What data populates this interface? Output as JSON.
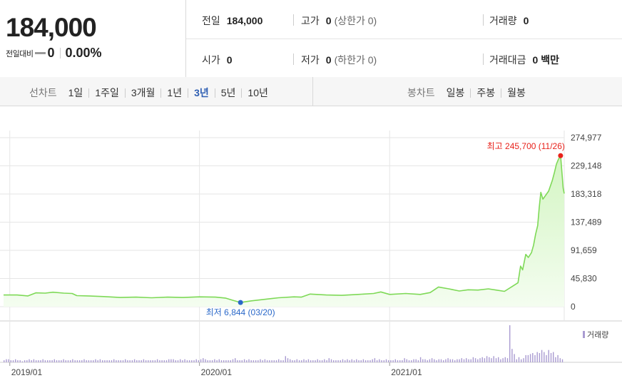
{
  "quote": {
    "price": "184,000",
    "change_label": "전일대비",
    "change_value": "0",
    "change_pct": "0.00%",
    "prev_close_label": "전일",
    "prev_close": "184,000",
    "open_label": "시가",
    "open": "0",
    "high_label": "고가",
    "high": "0",
    "high_limit": "(상한가 0)",
    "low_label": "저가",
    "low": "0",
    "low_limit": "(하한가 0)",
    "volume_label": "거래량",
    "volume": "0",
    "amount_label": "거래대금",
    "amount": "0 백만"
  },
  "toolbar": {
    "line_label": "선차트",
    "periods": [
      "1일",
      "1주일",
      "3개월",
      "1년",
      "3년",
      "5년",
      "10년"
    ],
    "selected_period": "3년",
    "candle_label": "봉차트",
    "candles": [
      "일봉",
      "주봉",
      "월봉"
    ]
  },
  "colors": {
    "line": "#7ed957",
    "fill_top": "#d3f5c2",
    "fill_bottom": "#f4fdf0",
    "volume": "#a99bd1",
    "high_marker": "#e8221b",
    "low_marker": "#2a68c9",
    "grid": "#e6e6e6",
    "selected": "#2f5fb3"
  },
  "chart_data": {
    "type": "area",
    "ylim": [
      0,
      274977
    ],
    "y_ticks": [
      "274,977",
      "229,148",
      "183,318",
      "137,489",
      "91,659",
      "45,830",
      "0"
    ],
    "y_tick_values": [
      274977,
      229148,
      183318,
      137489,
      91659,
      45830,
      0
    ],
    "x_ticks": [
      "2019/01",
      "2020/01",
      "2021/01"
    ],
    "x_tick_dates": [
      "2019-01-01",
      "2020-01-01",
      "2021-01-01"
    ],
    "x_range": [
      "2018-12-20",
      "2021-12-03"
    ],
    "grid": true,
    "high_annotation": "최고 245,700 (11/26)",
    "low_annotation": "최저 6,844 (03/20)",
    "high_point": {
      "x": "2021-11-26",
      "y": 245700
    },
    "low_point": {
      "x": "2020-03-20",
      "y": 6844
    },
    "series": [
      {
        "values": [
          {
            "x": "2018-12-20",
            "y": 19000
          },
          {
            "x": "2019-01-15",
            "y": 19000
          },
          {
            "x": "2019-02-05",
            "y": 17500
          },
          {
            "x": "2019-02-20",
            "y": 22500
          },
          {
            "x": "2019-03-10",
            "y": 22000
          },
          {
            "x": "2019-03-25",
            "y": 23500
          },
          {
            "x": "2019-04-15",
            "y": 22000
          },
          {
            "x": "2019-05-01",
            "y": 21500
          },
          {
            "x": "2019-05-10",
            "y": 18000
          },
          {
            "x": "2019-06-01",
            "y": 17500
          },
          {
            "x": "2019-07-01",
            "y": 16500
          },
          {
            "x": "2019-08-01",
            "y": 15000
          },
          {
            "x": "2019-09-01",
            "y": 15500
          },
          {
            "x": "2019-10-01",
            "y": 14500
          },
          {
            "x": "2019-11-01",
            "y": 15500
          },
          {
            "x": "2019-12-01",
            "y": 15000
          },
          {
            "x": "2020-01-01",
            "y": 16000
          },
          {
            "x": "2020-02-01",
            "y": 15500
          },
          {
            "x": "2020-02-20",
            "y": 14000
          },
          {
            "x": "2020-03-05",
            "y": 10500
          },
          {
            "x": "2020-03-20",
            "y": 6844
          },
          {
            "x": "2020-04-10",
            "y": 9500
          },
          {
            "x": "2020-05-01",
            "y": 11500
          },
          {
            "x": "2020-06-01",
            "y": 14500
          },
          {
            "x": "2020-07-01",
            "y": 16000
          },
          {
            "x": "2020-07-15",
            "y": 15500
          },
          {
            "x": "2020-08-01",
            "y": 20500
          },
          {
            "x": "2020-09-01",
            "y": 19000
          },
          {
            "x": "2020-10-01",
            "y": 18500
          },
          {
            "x": "2020-11-01",
            "y": 20000
          },
          {
            "x": "2020-12-01",
            "y": 21500
          },
          {
            "x": "2020-12-15",
            "y": 24000
          },
          {
            "x": "2021-01-01",
            "y": 20000
          },
          {
            "x": "2021-02-01",
            "y": 21500
          },
          {
            "x": "2021-03-01",
            "y": 20000
          },
          {
            "x": "2021-03-20",
            "y": 23000
          },
          {
            "x": "2021-04-05",
            "y": 32000
          },
          {
            "x": "2021-04-25",
            "y": 29000
          },
          {
            "x": "2021-05-15",
            "y": 25500
          },
          {
            "x": "2021-06-01",
            "y": 27500
          },
          {
            "x": "2021-06-20",
            "y": 27000
          },
          {
            "x": "2021-07-10",
            "y": 29000
          },
          {
            "x": "2021-07-25",
            "y": 27000
          },
          {
            "x": "2021-08-10",
            "y": 25000
          },
          {
            "x": "2021-08-25",
            "y": 33000
          },
          {
            "x": "2021-09-05",
            "y": 39000
          },
          {
            "x": "2021-09-10",
            "y": 66000
          },
          {
            "x": "2021-09-14",
            "y": 60000
          },
          {
            "x": "2021-09-20",
            "y": 85000
          },
          {
            "x": "2021-09-25",
            "y": 80000
          },
          {
            "x": "2021-10-01",
            "y": 88000
          },
          {
            "x": "2021-10-05",
            "y": 100000
          },
          {
            "x": "2021-10-09",
            "y": 118000
          },
          {
            "x": "2021-10-13",
            "y": 132000
          },
          {
            "x": "2021-10-16",
            "y": 162000
          },
          {
            "x": "2021-10-19",
            "y": 186000
          },
          {
            "x": "2021-10-23",
            "y": 175000
          },
          {
            "x": "2021-11-03",
            "y": 188000
          },
          {
            "x": "2021-11-10",
            "y": 205000
          },
          {
            "x": "2021-11-14",
            "y": 218000
          },
          {
            "x": "2021-11-18",
            "y": 232000
          },
          {
            "x": "2021-11-22",
            "y": 240000
          },
          {
            "x": "2021-11-26",
            "y": 245700
          },
          {
            "x": "2021-11-29",
            "y": 214000
          },
          {
            "x": "2021-12-01",
            "y": 193000
          },
          {
            "x": "2021-12-03",
            "y": 184000
          }
        ]
      }
    ],
    "volume_legend": "거래량",
    "volume_series": [
      2,
      3,
      3,
      2,
      2,
      3,
      2,
      2,
      1,
      2,
      2,
      3,
      2,
      3,
      2,
      2,
      2,
      3,
      2,
      2,
      2,
      2,
      3,
      2,
      2,
      2,
      3,
      2,
      2,
      2,
      3,
      2,
      2,
      2,
      2,
      3,
      2,
      2,
      2,
      2,
      3,
      2,
      3,
      2,
      2,
      2,
      2,
      2,
      3,
      2,
      2,
      2,
      2,
      3,
      2,
      2,
      2,
      3,
      2,
      2,
      2,
      3,
      2,
      2,
      2,
      2,
      2,
      3,
      2,
      2,
      2,
      2,
      3,
      3,
      3,
      2,
      2,
      3,
      2,
      3,
      2,
      2,
      2,
      2,
      3,
      2,
      3,
      4,
      3,
      2,
      2,
      2,
      3,
      2,
      3,
      2,
      2,
      2,
      2,
      2,
      3,
      4,
      2,
      2,
      2,
      3,
      2,
      3,
      2,
      2,
      2,
      2,
      3,
      2,
      3,
      2,
      2,
      2,
      2,
      2,
      3,
      2,
      2,
      6,
      4,
      3,
      2,
      2,
      3,
      2,
      2,
      3,
      2,
      3,
      2,
      2,
      2,
      3,
      2,
      2,
      3,
      2,
      4,
      3,
      2,
      2,
      2,
      2,
      3,
      2,
      3,
      2,
      3,
      2,
      3,
      2,
      2,
      3,
      2,
      2,
      2,
      3,
      4,
      2,
      3,
      2,
      2,
      3,
      2,
      2,
      2,
      3,
      2,
      2,
      2,
      4,
      3,
      2,
      2,
      3,
      3,
      2,
      5,
      3,
      3,
      2,
      3,
      4,
      3,
      2,
      3,
      3,
      2,
      3,
      4,
      3,
      3,
      2,
      3,
      3,
      4,
      3,
      4,
      3,
      3,
      5,
      4,
      3,
      4,
      5,
      4,
      6,
      5,
      4,
      6,
      4,
      5,
      3,
      4,
      5,
      4,
      36,
      13,
      8,
      3,
      5,
      3,
      4,
      7,
      7,
      8,
      9,
      7,
      10,
      9,
      12,
      10,
      7,
      12,
      9,
      10,
      5,
      7,
      4,
      3
    ],
    "volume_max": 36
  }
}
